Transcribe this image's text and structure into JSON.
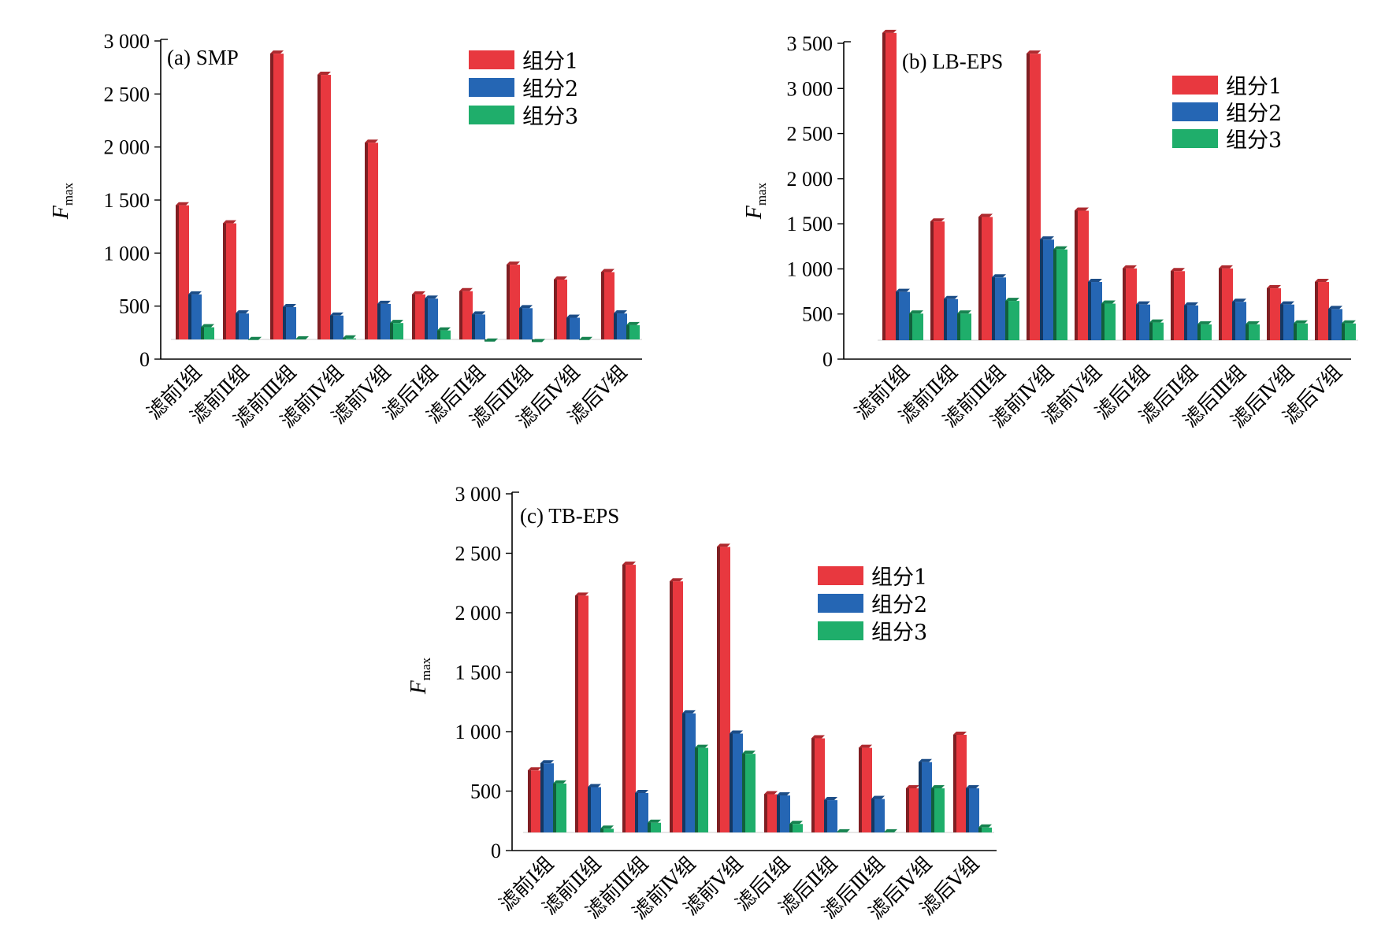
{
  "colors": {
    "series": [
      "#e8383f",
      "#2566b4",
      "#1fae6b"
    ]
  },
  "chart_data": [
    {
      "type": "bar",
      "title": "(a)  SMP",
      "ylabel": "F",
      "ylabel_sub": "max",
      "ylim": [
        0,
        3000
      ],
      "yticks": [
        0,
        500,
        1000,
        1500,
        2000,
        2500,
        3000
      ],
      "ytick_labels": [
        "0",
        "500",
        "1 000",
        "1 500",
        "2 000",
        "2 500",
        "3 000"
      ],
      "legend_position": "top-right",
      "categories": [
        "滤前Ⅰ组",
        "滤前Ⅱ组",
        "滤前Ⅲ组",
        "滤前Ⅳ组",
        "滤前Ⅴ组",
        "滤后Ⅰ组",
        "滤后Ⅱ组",
        "滤后Ⅲ组",
        "滤后Ⅳ组",
        "滤后Ⅴ组"
      ],
      "series": [
        {
          "name": "组分1",
          "values": [
            1480,
            1310,
            2910,
            2710,
            2070,
            640,
            670,
            920,
            780,
            850
          ]
        },
        {
          "name": "组分2",
          "values": [
            640,
            460,
            520,
            440,
            550,
            600,
            450,
            510,
            420,
            460
          ]
        },
        {
          "name": "组分3",
          "values": [
            330,
            210,
            215,
            225,
            370,
            300,
            195,
            190,
            210,
            350
          ]
        }
      ]
    },
    {
      "type": "bar",
      "title": "(b)  LB-EPS",
      "ylabel": "F",
      "ylabel_sub": "max",
      "ylim": [
        0,
        3500
      ],
      "yticks": [
        0,
        500,
        1000,
        1500,
        2000,
        2500,
        3000,
        3500
      ],
      "ytick_labels": [
        "0",
        "500",
        "1 000",
        "1 500",
        "2 000",
        "2 500",
        "3 000",
        "3 500"
      ],
      "legend_position": "top-right",
      "categories": [
        "滤前Ⅰ组",
        "滤前Ⅱ组",
        "滤前Ⅲ组",
        "滤前Ⅳ组",
        "滤前Ⅴ组",
        "滤后Ⅰ组",
        "滤后Ⅱ组",
        "滤后Ⅲ组",
        "滤后Ⅳ组",
        "滤后Ⅴ组"
      ],
      "series": [
        {
          "name": "组分1",
          "values": [
            3650,
            1560,
            1610,
            3420,
            1680,
            1040,
            1010,
            1040,
            820,
            890
          ]
        },
        {
          "name": "组分2",
          "values": [
            780,
            700,
            940,
            1360,
            890,
            640,
            630,
            670,
            640,
            590
          ]
        },
        {
          "name": "组分3",
          "values": [
            540,
            540,
            680,
            1250,
            650,
            440,
            420,
            420,
            430,
            430
          ]
        }
      ]
    },
    {
      "type": "bar",
      "title": "(c)  TB-EPS",
      "ylabel": "F",
      "ylabel_sub": "max",
      "ylim": [
        0,
        3000
      ],
      "yticks": [
        0,
        500,
        1000,
        1500,
        2000,
        2500,
        3000
      ],
      "ytick_labels": [
        "0",
        "500",
        "1 000",
        "1 500",
        "2 000",
        "2 500",
        "3 000"
      ],
      "legend_position": "top-right",
      "categories": [
        "滤前Ⅰ组",
        "滤前Ⅱ组",
        "滤前Ⅲ组",
        "滤前Ⅳ组",
        "滤前Ⅴ组",
        "滤后Ⅰ组",
        "滤后Ⅱ组",
        "滤后Ⅲ组",
        "滤后Ⅳ组",
        "滤后Ⅴ组"
      ],
      "series": [
        {
          "name": "组分1",
          "values": [
            700,
            2170,
            2430,
            2290,
            2580,
            500,
            970,
            890,
            550,
            1000
          ]
        },
        {
          "name": "组分2",
          "values": [
            760,
            560,
            510,
            1180,
            1010,
            490,
            450,
            460,
            770,
            550
          ]
        },
        {
          "name": "组分3",
          "values": [
            590,
            210,
            260,
            890,
            840,
            250,
            180,
            180,
            550,
            220
          ]
        }
      ]
    }
  ]
}
